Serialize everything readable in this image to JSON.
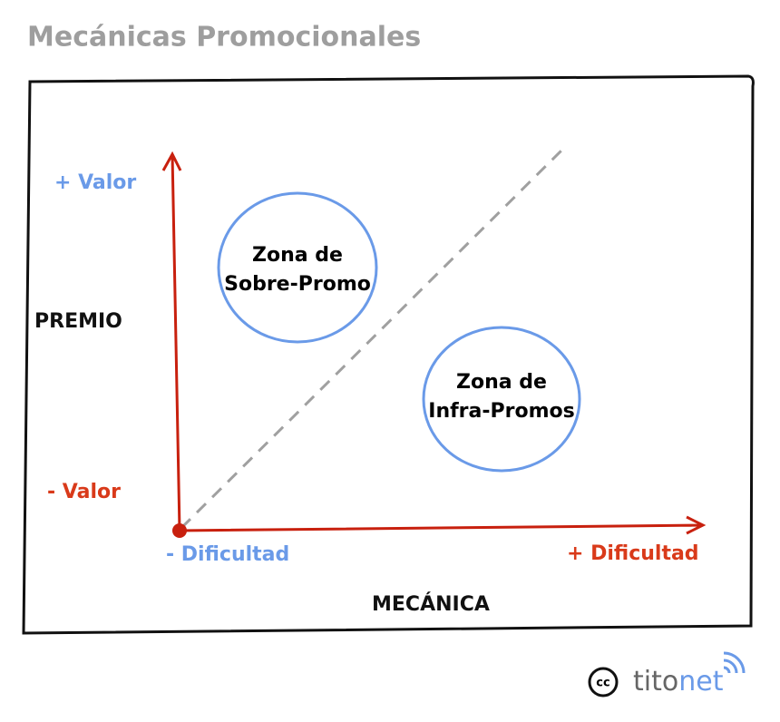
{
  "title": "Mecánicas Promocionales",
  "y_axis": {
    "label": "PREMIO",
    "high": "+ Valor",
    "low": "- Valor"
  },
  "x_axis": {
    "label": "MECÁNICA",
    "low": "- Dificultad",
    "high": "+ Dificultad"
  },
  "zones": [
    {
      "line1": "Zona de",
      "line2": "Sobre-Promo"
    },
    {
      "line1": "Zona de",
      "line2": "Infra-Promos"
    }
  ],
  "footer": {
    "license": "cc",
    "brand_a": "tito",
    "brand_b": "net"
  }
}
